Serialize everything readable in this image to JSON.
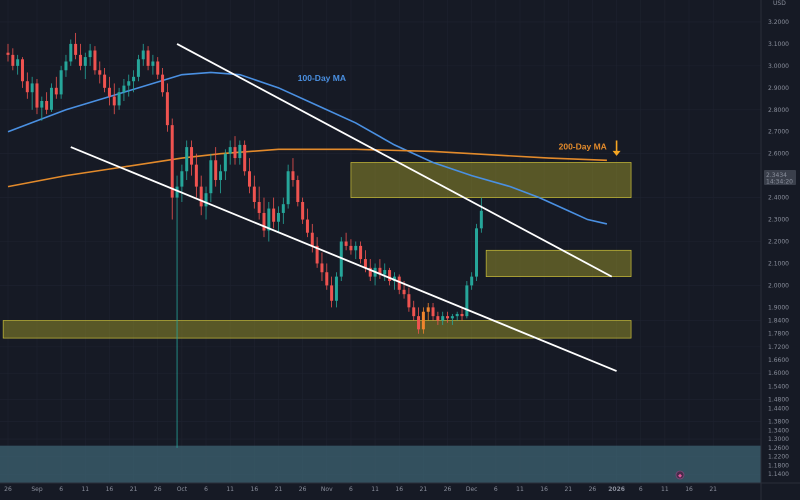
{
  "header": {
    "currency": "USD"
  },
  "price_tag": {
    "price": "2.3434",
    "countdown": "14:34:20"
  },
  "event_marker": {
    "glyph": "◆"
  },
  "colors": {
    "background": "#161a25",
    "grid": "#1f2330",
    "up": "#26a69a",
    "down": "#ef5350",
    "ma100": "#4a90e2",
    "ma200": "#e28a2b",
    "zone": "#8f8a2a",
    "zone_border": "#c9bd3a",
    "channel": "#ffffff",
    "lower_band": "#3d6372",
    "arrow": "#f5a623"
  },
  "chart_data": {
    "type": "candlestick",
    "y_axis": {
      "scale": "linear",
      "range": [
        1.1,
        3.3
      ],
      "ticks": [
        "3.2000",
        "3.1000",
        "3.0000",
        "2.9000",
        "2.8000",
        "2.7000",
        "2.6000",
        "2.5000",
        "2.4000",
        "2.3000",
        "2.2000",
        "2.1000",
        "2.0000",
        "1.9000",
        "1.8400",
        "1.7800",
        "1.7200",
        "1.6600",
        "1.6000",
        "1.5400",
        "1.4800",
        "1.4400",
        "1.3800",
        "1.3400",
        "1.3000",
        "1.2600",
        "1.2200",
        "1.1800",
        "1.1400"
      ],
      "tick_values": [
        3.2,
        3.1,
        3.0,
        2.9,
        2.8,
        2.7,
        2.6,
        2.5,
        2.4,
        2.3,
        2.2,
        2.1,
        2.0,
        1.9,
        1.84,
        1.78,
        1.72,
        1.66,
        1.6,
        1.54,
        1.48,
        1.44,
        1.38,
        1.34,
        1.3,
        1.26,
        1.22,
        1.18,
        1.14
      ]
    },
    "x_axis": {
      "ticks": [
        "26",
        "Sep",
        "6",
        "11",
        "16",
        "21",
        "26",
        "Oct",
        "6",
        "11",
        "16",
        "21",
        "26",
        "Nov",
        "6",
        "11",
        "16",
        "21",
        "26",
        "Dec",
        "6",
        "11",
        "16",
        "21",
        "26",
        "2026",
        "6",
        "11",
        "16",
        "21"
      ],
      "tick_index": [
        0,
        6,
        11,
        16,
        21,
        26,
        31,
        36,
        41,
        46,
        51,
        56,
        61,
        66,
        71,
        76,
        81,
        86,
        91,
        96,
        101,
        106,
        111,
        116,
        121,
        126,
        131,
        136,
        141,
        146
      ],
      "highlight": "2026"
    },
    "candles_ohlc": [
      [
        3.06,
        3.1,
        3.02,
        3.05
      ],
      [
        3.05,
        3.08,
        2.98,
        3.0
      ],
      [
        3.0,
        3.05,
        2.96,
        3.03
      ],
      [
        3.03,
        3.04,
        2.9,
        2.93
      ],
      [
        2.93,
        2.97,
        2.85,
        2.88
      ],
      [
        2.88,
        2.95,
        2.8,
        2.92
      ],
      [
        2.92,
        2.94,
        2.78,
        2.81
      ],
      [
        2.81,
        2.86,
        2.75,
        2.84
      ],
      [
        2.84,
        2.88,
        2.78,
        2.8
      ],
      [
        2.8,
        2.92,
        2.79,
        2.9
      ],
      [
        2.9,
        2.95,
        2.85,
        2.87
      ],
      [
        2.87,
        3.0,
        2.85,
        2.98
      ],
      [
        2.98,
        3.05,
        2.95,
        3.02
      ],
      [
        3.02,
        3.12,
        3.0,
        3.1
      ],
      [
        3.1,
        3.15,
        3.03,
        3.05
      ],
      [
        3.05,
        3.1,
        2.98,
        3.0
      ],
      [
        3.0,
        3.06,
        2.94,
        3.04
      ],
      [
        3.04,
        3.1,
        3.0,
        3.07
      ],
      [
        3.07,
        3.09,
        2.96,
        2.98
      ],
      [
        2.98,
        3.02,
        2.92,
        2.96
      ],
      [
        2.96,
        2.99,
        2.88,
        2.9
      ],
      [
        2.9,
        2.95,
        2.82,
        2.86
      ],
      [
        2.86,
        2.92,
        2.78,
        2.82
      ],
      [
        2.82,
        2.9,
        2.8,
        2.88
      ],
      [
        2.88,
        2.94,
        2.84,
        2.91
      ],
      [
        2.91,
        2.96,
        2.86,
        2.93
      ],
      [
        2.93,
        2.98,
        2.88,
        2.95
      ],
      [
        2.95,
        3.05,
        2.93,
        3.03
      ],
      [
        3.03,
        3.1,
        3.0,
        3.07
      ],
      [
        3.07,
        3.09,
        2.98,
        3.0
      ],
      [
        3.0,
        3.05,
        2.96,
        3.02
      ],
      [
        3.02,
        3.04,
        2.94,
        2.96
      ],
      [
        2.96,
        2.99,
        2.86,
        2.88
      ],
      [
        2.88,
        2.92,
        2.7,
        2.73
      ],
      [
        2.73,
        2.76,
        2.3,
        2.4
      ],
      [
        2.4,
        2.5,
        1.26,
        2.45
      ],
      [
        2.45,
        2.55,
        2.38,
        2.52
      ],
      [
        2.52,
        2.66,
        2.48,
        2.63
      ],
      [
        2.63,
        2.66,
        2.5,
        2.55
      ],
      [
        2.55,
        2.6,
        2.4,
        2.45
      ],
      [
        2.45,
        2.5,
        2.32,
        2.36
      ],
      [
        2.36,
        2.45,
        2.3,
        2.42
      ],
      [
        2.42,
        2.6,
        2.38,
        2.57
      ],
      [
        2.57,
        2.63,
        2.45,
        2.48
      ],
      [
        2.48,
        2.55,
        2.42,
        2.52
      ],
      [
        2.52,
        2.62,
        2.48,
        2.6
      ],
      [
        2.6,
        2.66,
        2.55,
        2.63
      ],
      [
        2.63,
        2.68,
        2.55,
        2.58
      ],
      [
        2.58,
        2.66,
        2.55,
        2.64
      ],
      [
        2.64,
        2.66,
        2.5,
        2.52
      ],
      [
        2.52,
        2.58,
        2.42,
        2.45
      ],
      [
        2.45,
        2.5,
        2.35,
        2.38
      ],
      [
        2.38,
        2.45,
        2.3,
        2.33
      ],
      [
        2.33,
        2.4,
        2.22,
        2.25
      ],
      [
        2.25,
        2.38,
        2.2,
        2.35
      ],
      [
        2.35,
        2.4,
        2.26,
        2.29
      ],
      [
        2.29,
        2.36,
        2.24,
        2.33
      ],
      [
        2.33,
        2.4,
        2.28,
        2.37
      ],
      [
        2.37,
        2.55,
        2.35,
        2.52
      ],
      [
        2.52,
        2.58,
        2.45,
        2.48
      ],
      [
        2.48,
        2.5,
        2.36,
        2.38
      ],
      [
        2.38,
        2.4,
        2.28,
        2.3
      ],
      [
        2.3,
        2.35,
        2.22,
        2.24
      ],
      [
        2.24,
        2.28,
        2.15,
        2.18
      ],
      [
        2.18,
        2.22,
        2.08,
        2.1
      ],
      [
        2.1,
        2.15,
        2.02,
        2.06
      ],
      [
        2.06,
        2.1,
        1.98,
        2.0
      ],
      [
        2.0,
        2.04,
        1.9,
        1.93
      ],
      [
        1.93,
        2.06,
        1.9,
        2.04
      ],
      [
        2.04,
        2.22,
        2.02,
        2.2
      ],
      [
        2.2,
        2.24,
        2.16,
        2.18
      ],
      [
        2.18,
        2.21,
        2.14,
        2.16
      ],
      [
        2.16,
        2.2,
        2.12,
        2.18
      ],
      [
        2.18,
        2.2,
        2.1,
        2.12
      ],
      [
        2.12,
        2.16,
        2.06,
        2.08
      ],
      [
        2.08,
        2.12,
        2.02,
        2.04
      ],
      [
        2.04,
        2.1,
        2.0,
        2.08
      ],
      [
        2.08,
        2.12,
        2.03,
        2.05
      ],
      [
        2.05,
        2.1,
        2.02,
        2.07
      ],
      [
        2.07,
        2.08,
        2.0,
        2.02
      ],
      [
        2.02,
        2.06,
        1.98,
        2.04
      ],
      [
        2.04,
        2.05,
        1.96,
        1.98
      ],
      [
        1.98,
        2.02,
        1.94,
        1.96
      ],
      [
        1.96,
        1.99,
        1.88,
        1.9
      ],
      [
        1.9,
        1.93,
        1.84,
        1.86
      ],
      [
        1.86,
        1.9,
        1.78,
        1.8
      ],
      [
        1.8,
        1.9,
        1.78,
        1.88
      ],
      [
        1.88,
        1.92,
        1.84,
        1.9
      ],
      [
        1.9,
        1.92,
        1.84,
        1.86
      ],
      [
        1.86,
        1.88,
        1.82,
        1.84
      ],
      [
        1.84,
        1.88,
        1.82,
        1.86
      ],
      [
        1.86,
        1.88,
        1.83,
        1.85
      ],
      [
        1.85,
        1.87,
        1.82,
        1.86
      ],
      [
        1.86,
        1.88,
        1.84,
        1.87
      ],
      [
        1.87,
        1.9,
        1.84,
        1.86
      ],
      [
        1.86,
        2.02,
        1.85,
        2.0
      ],
      [
        2.0,
        2.06,
        1.98,
        2.04
      ],
      [
        2.04,
        2.28,
        2.02,
        2.26
      ],
      [
        2.26,
        2.4,
        2.24,
        2.34
      ]
    ],
    "series": [
      {
        "name": "100-Day MA",
        "type": "line",
        "x": [
          0,
          12,
          24,
          36,
          42,
          48,
          56,
          64,
          72,
          80,
          88,
          96,
          104,
          110,
          116,
          120,
          124
        ],
        "values": [
          2.7,
          2.8,
          2.88,
          2.96,
          2.97,
          2.96,
          2.9,
          2.82,
          2.74,
          2.64,
          2.56,
          2.5,
          2.45,
          2.4,
          2.34,
          2.3,
          2.28
        ]
      },
      {
        "name": "200-Day MA",
        "type": "line",
        "x": [
          0,
          12,
          24,
          36,
          44,
          56,
          72,
          88,
          104,
          112,
          124
        ],
        "values": [
          2.45,
          2.5,
          2.54,
          2.58,
          2.6,
          2.62,
          2.62,
          2.61,
          2.59,
          2.58,
          2.57
        ]
      }
    ],
    "trendlines": [
      {
        "name": "upper-channel",
        "from": [
          35,
          3.1
        ],
        "to": [
          125,
          2.04
        ]
      },
      {
        "name": "lower-channel",
        "from": [
          13,
          2.63
        ],
        "to": [
          126,
          1.61
        ]
      }
    ],
    "zones": [
      {
        "name": "zone-upper",
        "x_range": [
          71,
          129
        ],
        "y_range": [
          2.4,
          2.56
        ]
      },
      {
        "name": "zone-mid",
        "x_range": [
          99,
          129
        ],
        "y_range": [
          2.04,
          2.16
        ]
      },
      {
        "name": "zone-low",
        "x_range": [
          -1,
          129
        ],
        "y_range": [
          1.76,
          1.84
        ]
      }
    ],
    "lower_band": {
      "y_range": [
        1.1,
        1.27
      ]
    },
    "annotations": [
      {
        "name": "100-Day MA",
        "text": "100-Day MA",
        "x": 60,
        "y": 2.93,
        "color": "#4a90e2"
      },
      {
        "name": "200-Day MA",
        "text": "200-Day MA",
        "x": 114,
        "y": 2.62,
        "color": "#e28a2b"
      }
    ],
    "arrow": {
      "x": 126,
      "y_from": 2.66,
      "y_to": 2.59
    }
  }
}
